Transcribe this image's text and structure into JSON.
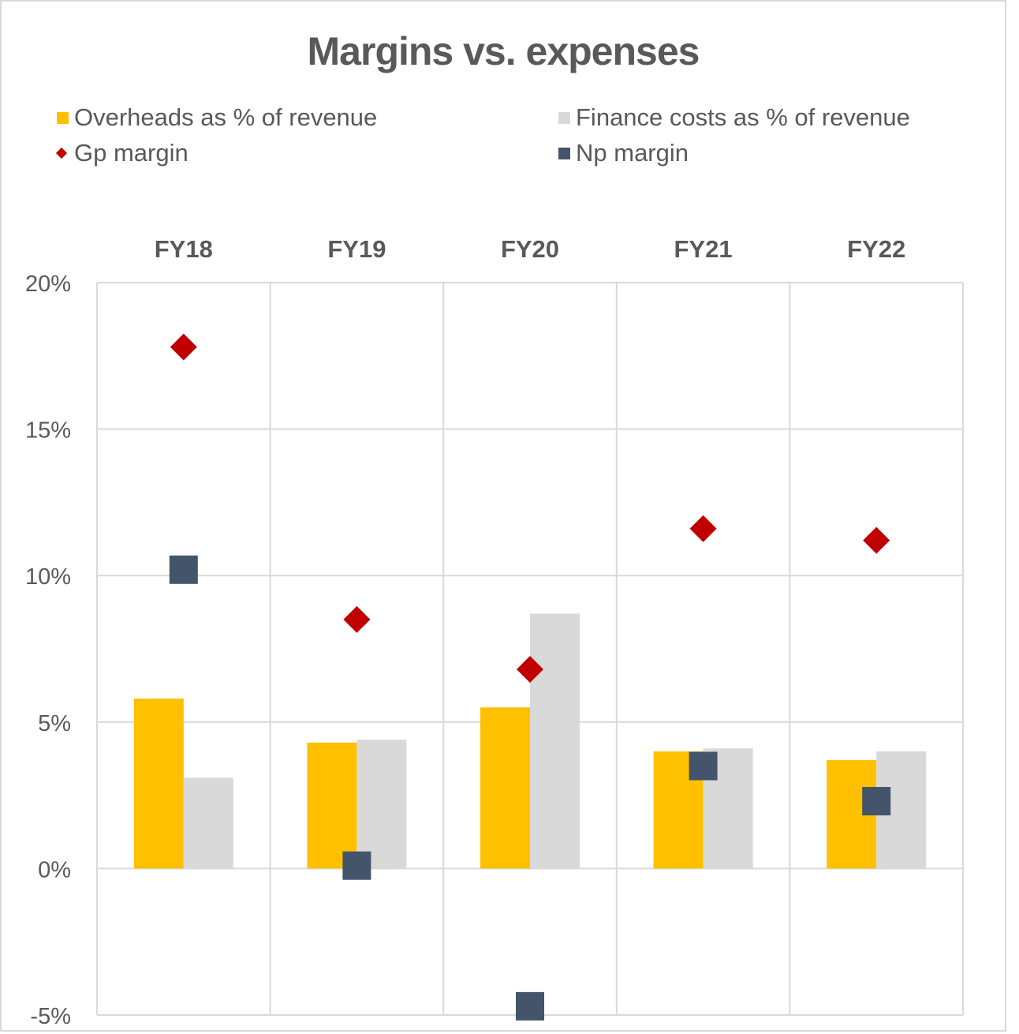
{
  "chart_data": {
    "type": "bar",
    "title": "Margins vs. expenses",
    "xlabel": "",
    "ylabel": "",
    "categories": [
      "FY18",
      "FY19",
      "FY20",
      "FY21",
      "FY22"
    ],
    "category_axis_position": "top",
    "ylim": [
      -5,
      20
    ],
    "yticks": [
      20,
      15,
      10,
      5,
      0,
      -5
    ],
    "ytick_labels": [
      "20%",
      "15%",
      "10%",
      "5%",
      "0%",
      "-5%"
    ],
    "grid": true,
    "legend_position": "top",
    "series": [
      {
        "name": "Overheads as % of revenue",
        "kind": "bar",
        "color": "#FFC000",
        "values": [
          5.8,
          4.3,
          5.5,
          4.0,
          3.7
        ]
      },
      {
        "name": "Finance costs as % of revenue",
        "kind": "bar",
        "color": "#D9D9D9",
        "values": [
          3.1,
          4.4,
          8.7,
          4.1,
          4.0
        ]
      },
      {
        "name": "Gp margin",
        "kind": "marker",
        "marker": "diamond",
        "color": "#C00000",
        "values": [
          17.8,
          8.5,
          6.8,
          11.6,
          11.2
        ]
      },
      {
        "name": "Np margin",
        "kind": "marker",
        "marker": "square",
        "color": "#44546A",
        "values": [
          10.2,
          0.1,
          -4.7,
          3.5,
          2.3
        ]
      }
    ]
  },
  "legend": [
    {
      "label": "Overheads as % of revenue",
      "color": "#FFC000",
      "shape": "square"
    },
    {
      "label": "Finance costs as % of revenue",
      "color": "#D9D9D9",
      "shape": "square"
    },
    {
      "label": "Gp margin",
      "color": "#C00000",
      "shape": "diamond"
    },
    {
      "label": "Np margin",
      "color": "#44546A",
      "shape": "square"
    }
  ]
}
